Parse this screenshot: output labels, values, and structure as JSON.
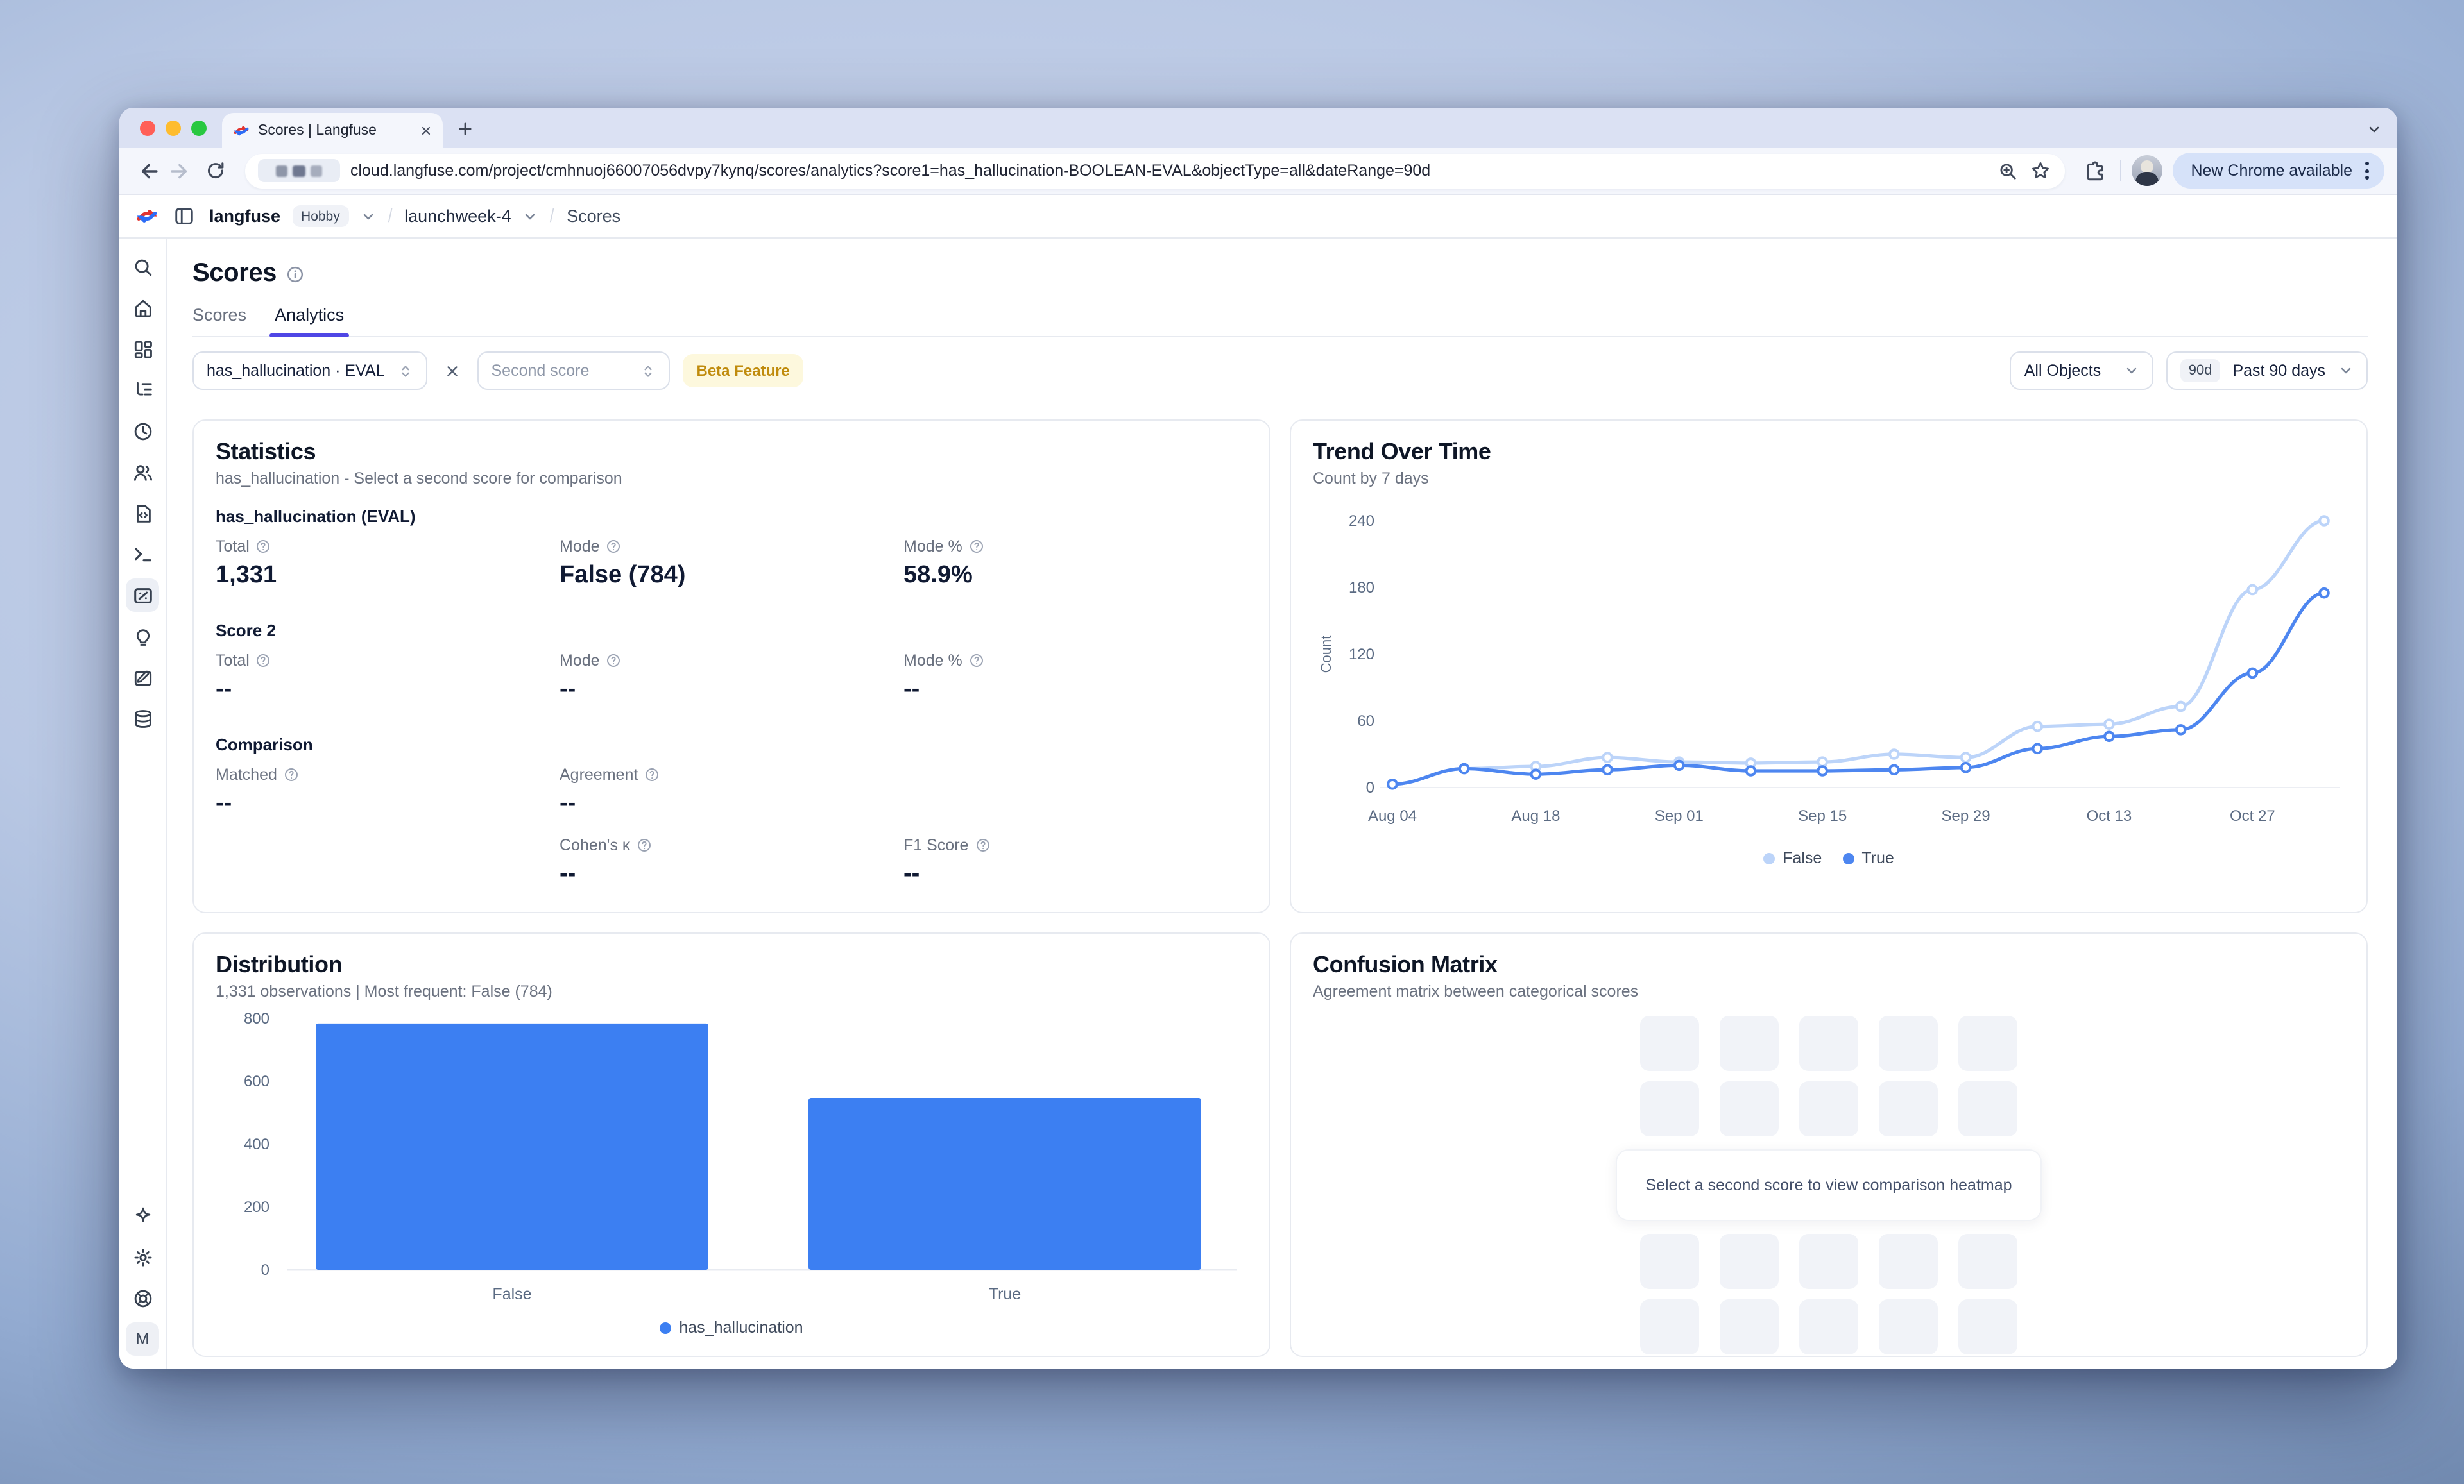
{
  "browser": {
    "tab_title": "Scores | Langfuse",
    "url": "cloud.langfuse.com/project/cmhnuoj66007056dvpy7kynq/scores/analytics?score1=has_hallucination-BOOLEAN-EVAL&objectType=all&dateRange=90d",
    "new_chrome_label": "New Chrome available"
  },
  "header": {
    "org": "langfuse",
    "plan_badge": "Hobby",
    "project": "launchweek-4",
    "page": "Scores"
  },
  "sidebar": {
    "avatar_letter": "M"
  },
  "page": {
    "title": "Scores",
    "tabs": [
      {
        "label": "Scores"
      },
      {
        "label": "Analytics"
      }
    ],
    "filters": {
      "score1": "has_hallucination · EVAL",
      "score2_placeholder": "Second score",
      "beta_badge": "Beta Feature",
      "object_filter": "All Objects",
      "date_range_short": "90d",
      "date_range_label": "Past 90 days"
    }
  },
  "statistics": {
    "title": "Statistics",
    "subtitle": "has_hallucination - Select a second score for comparison",
    "section1": {
      "heading": "has_hallucination (EVAL)",
      "metrics": [
        {
          "label": "Total",
          "value": "1,331"
        },
        {
          "label": "Mode",
          "value": "False (784)"
        },
        {
          "label": "Mode %",
          "value": "58.9%"
        }
      ]
    },
    "section2": {
      "heading": "Score 2",
      "metrics": [
        {
          "label": "Total",
          "value": "--"
        },
        {
          "label": "Mode",
          "value": "--"
        },
        {
          "label": "Mode %",
          "value": "--"
        }
      ]
    },
    "section3": {
      "heading": "Comparison",
      "row1": [
        {
          "label": "Matched",
          "value": "--"
        },
        {
          "label": "Agreement",
          "value": "--"
        }
      ],
      "row2": [
        {
          "label": "Cohen's κ",
          "value": "--"
        },
        {
          "label": "F1 Score",
          "value": "--"
        }
      ]
    }
  },
  "confusion": {
    "title": "Confusion Matrix",
    "subtitle": "Agreement matrix between categorical scores",
    "empty_message": "Select a second score to view comparison heatmap"
  },
  "chart_data": [
    {
      "id": "trend",
      "type": "line",
      "title": "Trend Over Time",
      "subtitle": "Count by 7 days",
      "ylabel": "Count",
      "ylim": [
        0,
        240
      ],
      "yticks": [
        0,
        60,
        120,
        180,
        240
      ],
      "x": [
        "Aug 04",
        "Aug 11",
        "Aug 18",
        "Aug 25",
        "Sep 01",
        "Sep 08",
        "Sep 15",
        "Sep 22",
        "Sep 29",
        "Oct 06",
        "Oct 13",
        "Oct 20",
        "Oct 27",
        "Nov 03"
      ],
      "x_tick_labels": [
        "Aug 04",
        "Aug 18",
        "Sep 01",
        "Sep 15",
        "Sep 29",
        "Oct 13",
        "Oct 27"
      ],
      "grid": false,
      "legend_position": "bottom",
      "series": [
        {
          "name": "False",
          "color": "#bcd4f9",
          "values": [
            3,
            17,
            19,
            27,
            23,
            22,
            23,
            30,
            27,
            55,
            57,
            73,
            178,
            240
          ]
        },
        {
          "name": "True",
          "color": "#4d86f0",
          "values": [
            3,
            17,
            12,
            16,
            20,
            15,
            15,
            16,
            18,
            35,
            46,
            52,
            103,
            175
          ]
        }
      ]
    },
    {
      "id": "distribution",
      "type": "bar",
      "title": "Distribution",
      "subtitle": "1,331 observations | Most frequent: False (784)",
      "categories": [
        "False",
        "True"
      ],
      "values": [
        784,
        547
      ],
      "yticks": [
        0,
        200,
        400,
        600,
        800
      ],
      "ylim": [
        0,
        800
      ],
      "series_name": "has_hallucination",
      "color": "#3c7ff2",
      "legend_position": "bottom"
    }
  ]
}
